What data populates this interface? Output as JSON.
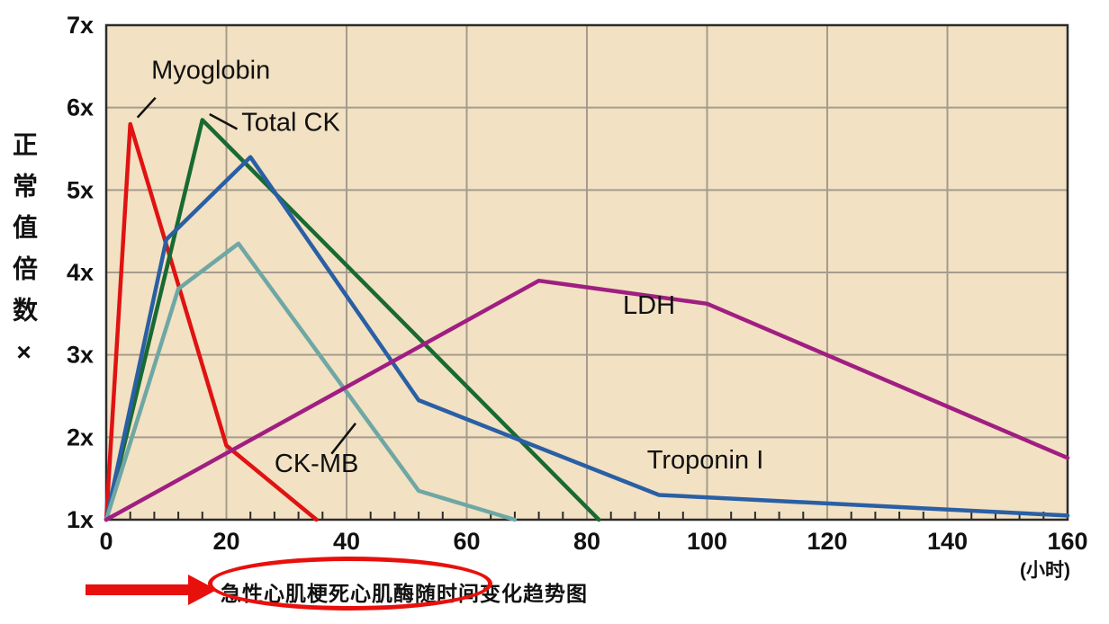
{
  "chart_data": {
    "type": "line",
    "title": "急性心肌梗死心肌酶随时间变化趋势图",
    "ylabel": "正常值倍数×",
    "xunit": "(小时)",
    "xlim": [
      0,
      160
    ],
    "ylim": [
      1,
      7
    ],
    "x_major_ticks": [
      0,
      20,
      40,
      60,
      80,
      100,
      120,
      140,
      160
    ],
    "x_minor_step": 4,
    "y_ticks": [
      1,
      2,
      3,
      4,
      5,
      6,
      7
    ],
    "y_tick_labels": [
      "1x",
      "2x",
      "3x",
      "4x",
      "5x",
      "6x",
      "7x"
    ],
    "grid_on": true,
    "legend": "inline-annotations",
    "background": "#f2e1c2",
    "grid_color": "#a59c8e",
    "axis_color": "#2b2b2b",
    "highlight_color": "#e8100c",
    "series": [
      {
        "name": "Myoglobin",
        "color": "#e01212",
        "points": [
          [
            0,
            1
          ],
          [
            4,
            5.8
          ],
          [
            20,
            1.9
          ],
          [
            35,
            1
          ]
        ]
      },
      {
        "name": "Total CK",
        "color": "#186a32",
        "points": [
          [
            0,
            1
          ],
          [
            16,
            5.85
          ],
          [
            82,
            1
          ]
        ]
      },
      {
        "name": "Troponin I",
        "color": "#2a5fa5",
        "points": [
          [
            0,
            1
          ],
          [
            10,
            4.4
          ],
          [
            24,
            5.4
          ],
          [
            52,
            2.45
          ],
          [
            92,
            1.3
          ],
          [
            160,
            1.05
          ]
        ]
      },
      {
        "name": "CK-MB",
        "color": "#6ea7a4",
        "points": [
          [
            0,
            1
          ],
          [
            12,
            3.8
          ],
          [
            22,
            4.35
          ],
          [
            52,
            1.35
          ],
          [
            68,
            1
          ]
        ]
      },
      {
        "name": "LDH",
        "color": "#a01e82",
        "points": [
          [
            0,
            1
          ],
          [
            72,
            3.9
          ],
          [
            100,
            3.62
          ],
          [
            160,
            1.75
          ]
        ]
      }
    ],
    "annotations": [
      {
        "text": "Myoglobin",
        "x": 7.5,
        "y": 6.35,
        "leader": [
          [
            8.2,
            6.12
          ],
          [
            5.2,
            5.88
          ]
        ]
      },
      {
        "text": "Total CK",
        "x": 22.5,
        "y": 5.72,
        "leader": [
          [
            21.8,
            5.74
          ],
          [
            17.2,
            5.92
          ]
        ]
      },
      {
        "text": "LDH",
        "x": 86,
        "y": 3.5
      },
      {
        "text": "CK-MB",
        "x": 28,
        "y": 1.58,
        "leader": [
          [
            37.5,
            1.8
          ],
          [
            41.5,
            2.17
          ]
        ]
      },
      {
        "text": "Troponin I",
        "x": 90,
        "y": 1.62
      }
    ]
  }
}
